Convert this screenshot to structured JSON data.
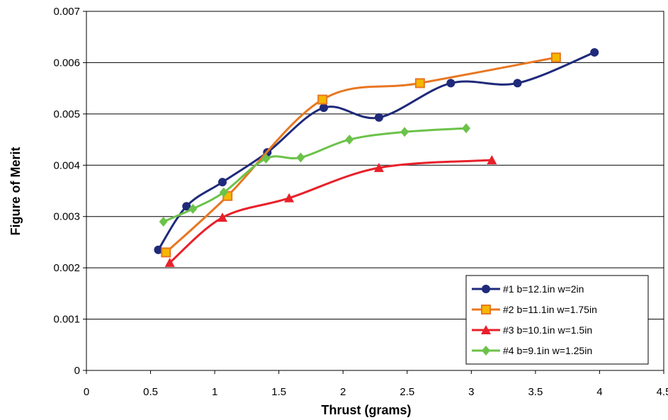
{
  "chart_data": {
    "type": "line",
    "xlabel": "Thrust (grams)",
    "ylabel": "Figure of Merit",
    "xlim": [
      0,
      4.5
    ],
    "ylim": [
      0,
      0.007
    ],
    "x_ticks": [
      "0",
      "0.5",
      "1",
      "1.5",
      "2",
      "2.5",
      "3",
      "3.5",
      "4",
      "4.5"
    ],
    "y_ticks": [
      "0",
      "0.001",
      "0.002",
      "0.003",
      "0.004",
      "0.005",
      "0.006",
      "0.007"
    ],
    "grid": "horizontal",
    "legend_position": "bottom-right",
    "series": [
      {
        "name": "#1 b=12.1in  w=2in",
        "color": "#1F2A7A",
        "marker": "circle",
        "points": [
          [
            0.56,
            0.00235
          ],
          [
            0.78,
            0.0032
          ],
          [
            1.06,
            0.00367
          ],
          [
            1.41,
            0.00425
          ],
          [
            1.85,
            0.00512
          ],
          [
            2.28,
            0.00493
          ],
          [
            2.84,
            0.0056
          ],
          [
            3.36,
            0.0056
          ],
          [
            3.96,
            0.0062
          ]
        ]
      },
      {
        "name": "#2 b=11.1in  w=1.75in",
        "color": "#E87722",
        "marker": "square",
        "points": [
          [
            0.62,
            0.0023
          ],
          [
            1.1,
            0.0034
          ],
          [
            1.84,
            0.00528
          ],
          [
            2.6,
            0.0056
          ],
          [
            3.66,
            0.0061
          ]
        ]
      },
      {
        "name": "#3 b=10.1in  w=1.5in",
        "color": "#E8202A",
        "marker": "triangle",
        "points": [
          [
            0.65,
            0.0021
          ],
          [
            1.06,
            0.00298
          ],
          [
            1.58,
            0.00336
          ],
          [
            2.28,
            0.00395
          ],
          [
            3.16,
            0.0041
          ]
        ]
      },
      {
        "name": "#4 b=9.1in  w=1.25in",
        "color": "#6CC24A",
        "marker": "diamond",
        "points": [
          [
            0.6,
            0.0029
          ],
          [
            0.83,
            0.00315
          ],
          [
            1.07,
            0.00347
          ],
          [
            1.4,
            0.00413
          ],
          [
            1.67,
            0.00415
          ],
          [
            2.05,
            0.0045
          ],
          [
            2.48,
            0.00465
          ],
          [
            2.96,
            0.00472
          ]
        ]
      }
    ]
  }
}
